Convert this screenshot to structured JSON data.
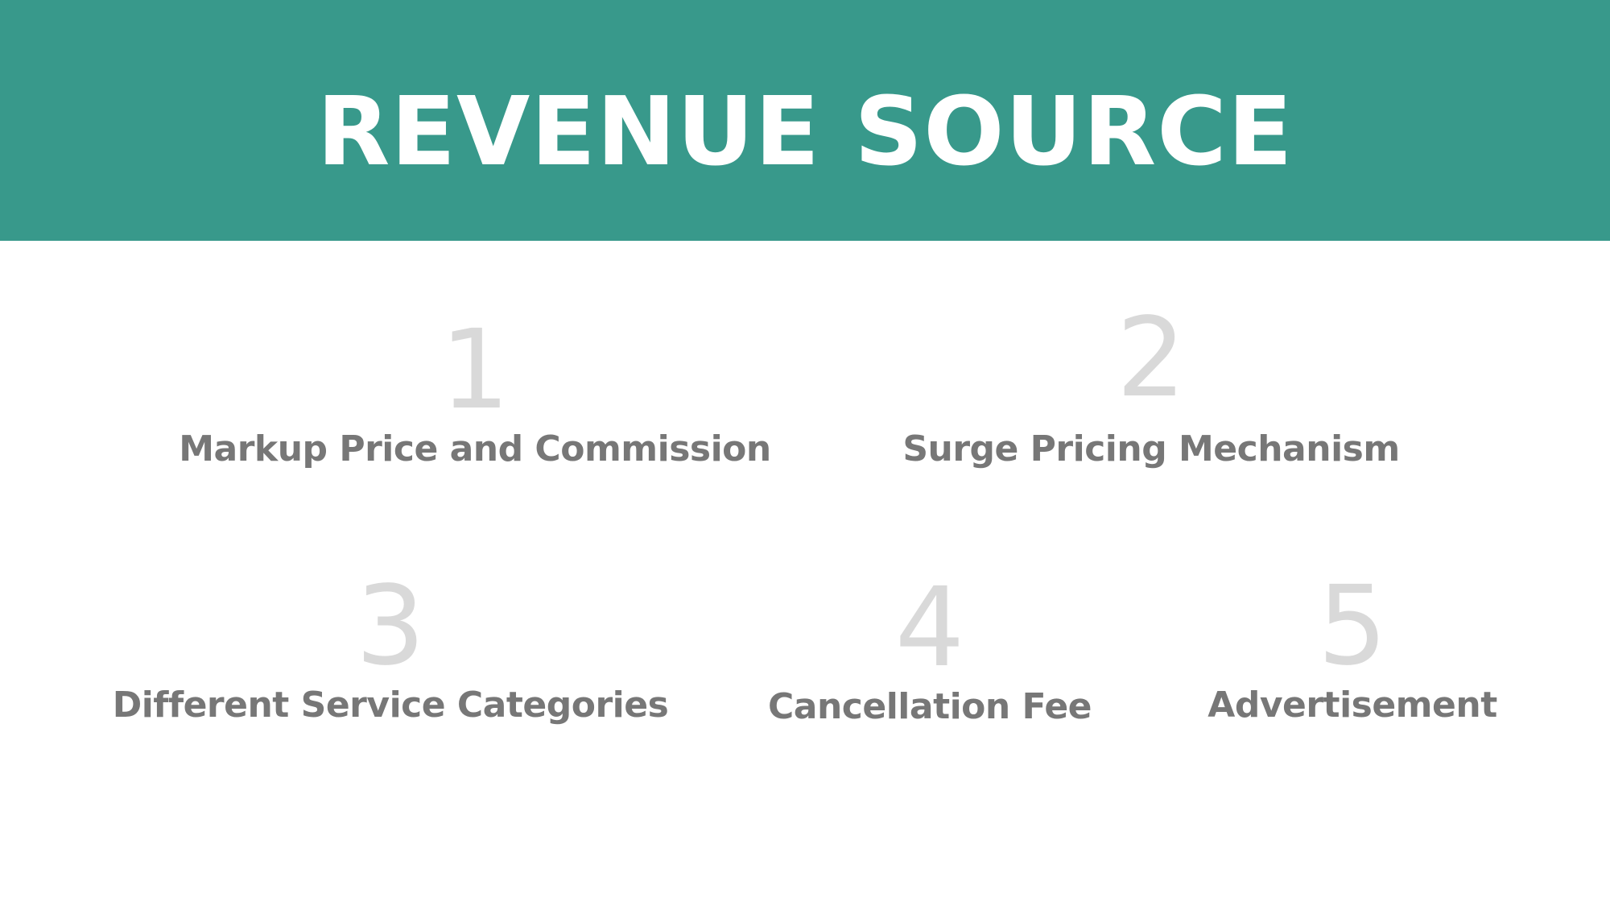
{
  "header": {
    "title": "REVENUE SOURCE",
    "background_color": "#38998b"
  },
  "items": [
    {
      "number": "1",
      "label": "Markup Price and Commission"
    },
    {
      "number": "2",
      "label": "Surge Pricing Mechanism"
    },
    {
      "number": "3",
      "label": "Different Service Categories"
    },
    {
      "number": "4",
      "label": "Cancellation Fee"
    },
    {
      "number": "5",
      "label": "Advertisement"
    }
  ],
  "colors": {
    "number": "#d9d9d9",
    "label": "#777777",
    "title": "#ffffff"
  }
}
